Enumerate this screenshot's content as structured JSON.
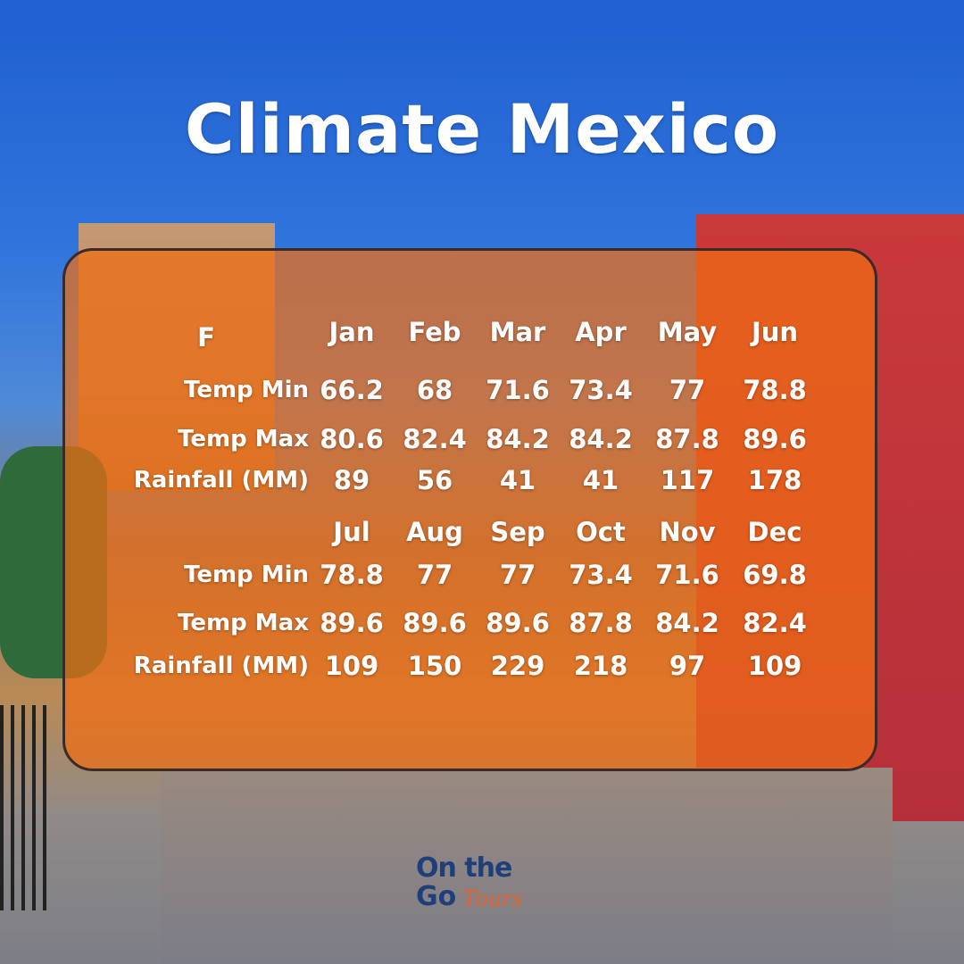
{
  "title": "Climate Mexico",
  "logo": {
    "line1": "On the",
    "line2": "Go",
    "script": "Tours"
  },
  "table": {
    "unit": "F",
    "blocks": [
      {
        "months": [
          "Jan",
          "Feb",
          "Mar",
          "Apr",
          "May",
          "Jun"
        ],
        "rows": [
          {
            "label": "Temp Min",
            "values": [
              66.2,
              68,
              71.6,
              73.4,
              77,
              78.8
            ]
          },
          {
            "label": "Temp Max",
            "values": [
              80.6,
              82.4,
              84.2,
              84.2,
              87.8,
              89.6
            ]
          },
          {
            "label": "Rainfall (MM)",
            "values": [
              89,
              56,
              41,
              41,
              117,
              178
            ]
          }
        ]
      },
      {
        "months": [
          "Jul",
          "Aug",
          "Sep",
          "Oct",
          "Nov",
          "Dec"
        ],
        "rows": [
          {
            "label": "Temp Min",
            "values": [
              78.8,
              77,
              77,
              73.4,
              71.6,
              69.8
            ]
          },
          {
            "label": "Temp Max",
            "values": [
              89.6,
              89.6,
              89.6,
              87.8,
              84.2,
              82.4
            ]
          },
          {
            "label": "Rainfall (MM)",
            "values": [
              109,
              150,
              229,
              218,
              97,
              109
            ]
          }
        ]
      }
    ]
  }
}
